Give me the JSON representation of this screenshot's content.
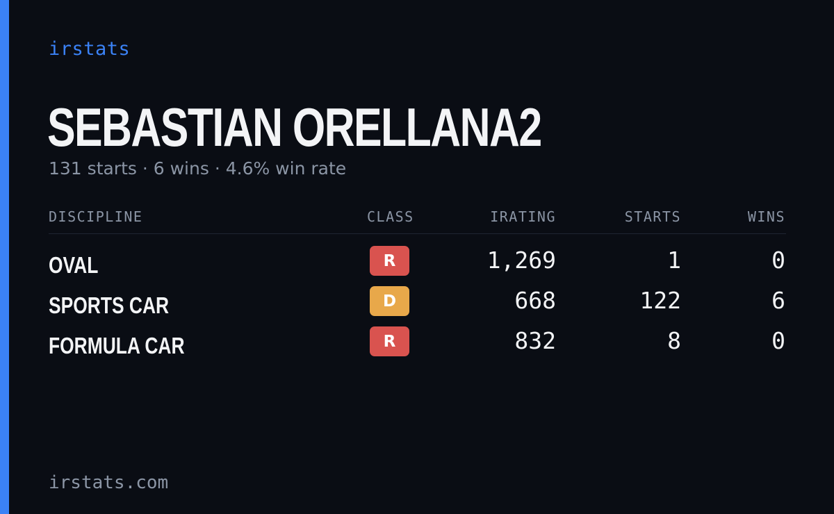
{
  "brand": "irstats",
  "driver": {
    "name": "SEBASTIAN ORELLANA2",
    "summary": "131 starts · 6 wins · 4.6% win rate"
  },
  "table": {
    "headers": {
      "discipline": "DISCIPLINE",
      "class": "CLASS",
      "irating": "IRATING",
      "starts": "STARTS",
      "wins": "WINS"
    },
    "rows": [
      {
        "discipline": "OVAL",
        "class": "R",
        "class_color": "#d9534f",
        "irating": "1,269",
        "starts": "1",
        "wins": "0"
      },
      {
        "discipline": "SPORTS CAR",
        "class": "D",
        "class_color": "#e8a84a",
        "irating": "668",
        "starts": "122",
        "wins": "6"
      },
      {
        "discipline": "FORMULA CAR",
        "class": "R",
        "class_color": "#d9534f",
        "irating": "832",
        "starts": "8",
        "wins": "0"
      }
    ]
  },
  "footer": "irstats.com",
  "colors": {
    "accent": "#3b82f6",
    "background": "#0a0d14",
    "text_primary": "#f3f4f6",
    "text_muted": "#8b95a5"
  }
}
